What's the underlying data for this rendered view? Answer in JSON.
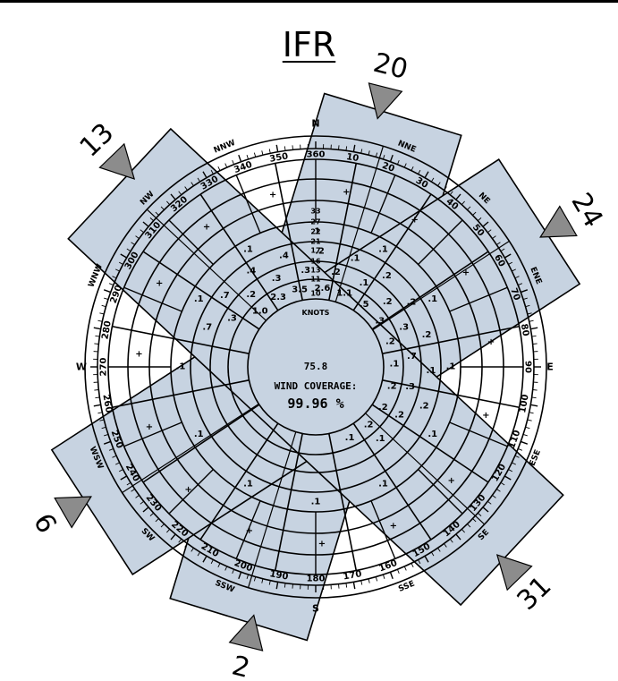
{
  "title": "IFR",
  "colors": {
    "runway_fill": "#c7d3e1",
    "arrow_fill": "#8c8c8c",
    "line": "#000000"
  },
  "runways": [
    {
      "label": "20",
      "opposite": "2",
      "heading_deg": 197
    },
    {
      "label": "24",
      "opposite": "6",
      "heading_deg": 237
    },
    {
      "label": "31",
      "opposite": "13",
      "heading_deg": 313
    }
  ],
  "cardinals": {
    "n": "N",
    "s": "S",
    "e": "E",
    "w": "W"
  },
  "compass_points": [
    "NNE",
    "NE",
    "ENE",
    "ESE",
    "SE",
    "SSE",
    "SSW",
    "SW",
    "WSW",
    "WNW",
    "NW",
    "NNW"
  ],
  "degree_labels": [
    "10",
    "20",
    "30",
    "40",
    "50",
    "60",
    "70",
    "80",
    "90",
    "100",
    "110",
    "120",
    "130",
    "140",
    "150",
    "160",
    "170",
    "180",
    "190",
    "200",
    "210",
    "220",
    "230",
    "240",
    "250",
    "260",
    "270",
    "280",
    "290",
    "300",
    "310",
    "320",
    "330",
    "340",
    "350",
    "360"
  ],
  "speed_rings": [
    "10",
    "11",
    "13",
    "16",
    "17",
    "21",
    "22",
    "27",
    "33"
  ],
  "speed_unit": "KNOTS",
  "center": {
    "calm": "75.8",
    "coverage_label": "WIND COVERAGE:",
    "coverage_value": "99.96 %"
  },
  "cell_values": [
    "1.0",
    "2.3",
    "3.5",
    "2.6",
    "1.1",
    ".5",
    ".3",
    ".2",
    ".1",
    ".2",
    ".2",
    ".2",
    ".1",
    ".3",
    ".2",
    ".3",
    ".3",
    ".2",
    ".1",
    ".2",
    ".3",
    ".7",
    ".3",
    ".2",
    ".1",
    ".7",
    ".7",
    ".4",
    ".4",
    ".2",
    ".1",
    ".2",
    ".2",
    ".2",
    ".1",
    ".2",
    ".1",
    ".1",
    ".1",
    ".1",
    ".1",
    ".1",
    ".1",
    ".1",
    ".1",
    ".1",
    ".1",
    ".1",
    "+",
    "+",
    "+",
    "+",
    "+",
    "+",
    "+",
    "+",
    "+",
    "+",
    "+",
    "+",
    "+",
    "+",
    "+"
  ]
}
